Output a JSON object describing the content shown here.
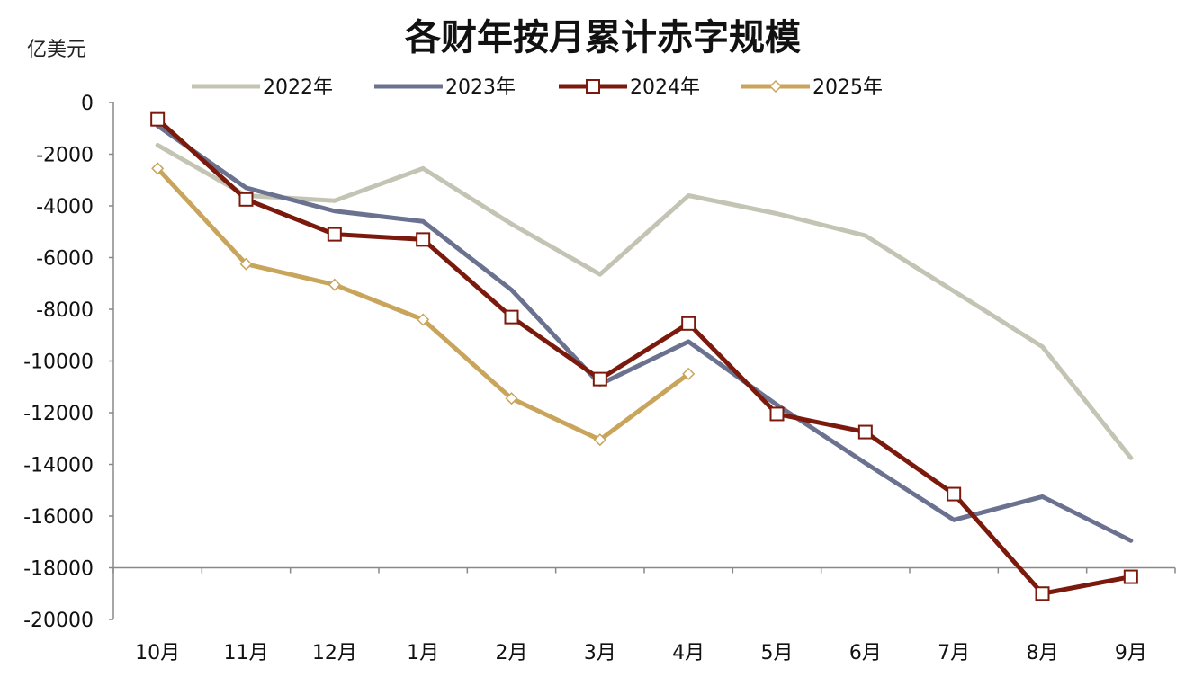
{
  "chart_data": {
    "type": "line",
    "title": "各财年按月累计赤字规模",
    "ylabel": "亿美元",
    "xlabel": "",
    "categories": [
      "10月",
      "11月",
      "12月",
      "1月",
      "2月",
      "3月",
      "4月",
      "5月",
      "6月",
      "7月",
      "8月",
      "9月"
    ],
    "ylim": [
      -20000,
      0
    ],
    "yticks": [
      0,
      -2000,
      -4000,
      -6000,
      -8000,
      -10000,
      -12000,
      -14000,
      -16000,
      -18000,
      -20000
    ],
    "x_axis_crosses_at": -18000,
    "legend_position": "top",
    "series": [
      {
        "name": "2022年",
        "color": "#c4c4b4",
        "marker": "none",
        "values": [
          -1650,
          -3600,
          -3800,
          -2550,
          -4700,
          -6650,
          -3600,
          -4300,
          -5150,
          -7300,
          -9450,
          -13750
        ]
      },
      {
        "name": "2023年",
        "color": "#6b7290",
        "marker": "none",
        "values": [
          -900,
          -3300,
          -4200,
          -4600,
          -7250,
          -10900,
          -9250,
          -11700,
          -13950,
          -16150,
          -15250,
          -16950
        ]
      },
      {
        "name": "2024年",
        "color": "#7b1a0c",
        "marker": "square",
        "values": [
          -650,
          -3750,
          -5100,
          -5300,
          -8300,
          -10700,
          -8550,
          -12050,
          -12750,
          -15150,
          -19000,
          -18350
        ]
      },
      {
        "name": "2025年",
        "color": "#c9a55c",
        "marker": "diamond",
        "values": [
          -2550,
          -6250,
          -7050,
          -8400,
          -11450,
          -13050,
          -10500,
          null,
          null,
          null,
          null,
          null
        ]
      }
    ]
  }
}
